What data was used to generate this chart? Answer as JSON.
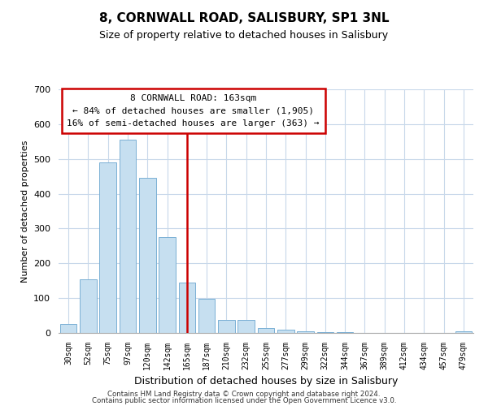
{
  "title": "8, CORNWALL ROAD, SALISBURY, SP1 3NL",
  "subtitle": "Size of property relative to detached houses in Salisbury",
  "xlabel": "Distribution of detached houses by size in Salisbury",
  "ylabel": "Number of detached properties",
  "bar_labels": [
    "30sqm",
    "52sqm",
    "75sqm",
    "97sqm",
    "120sqm",
    "142sqm",
    "165sqm",
    "187sqm",
    "210sqm",
    "232sqm",
    "255sqm",
    "277sqm",
    "299sqm",
    "322sqm",
    "344sqm",
    "367sqm",
    "389sqm",
    "412sqm",
    "434sqm",
    "457sqm",
    "479sqm"
  ],
  "bar_values": [
    25,
    155,
    490,
    555,
    445,
    275,
    145,
    97,
    37,
    37,
    15,
    10,
    5,
    2,
    2,
    0,
    0,
    0,
    0,
    0,
    5
  ],
  "bar_color": "#c6dff0",
  "bar_edge_color": "#7ab0d4",
  "vline_index": 6,
  "vline_color": "#cc0000",
  "annotation_title": "8 CORNWALL ROAD: 163sqm",
  "annotation_line1": "← 84% of detached houses are smaller (1,905)",
  "annotation_line2": "16% of semi-detached houses are larger (363) →",
  "annotation_box_color": "#ffffff",
  "annotation_box_edge": "#cc0000",
  "ylim": [
    0,
    700
  ],
  "yticks": [
    0,
    100,
    200,
    300,
    400,
    500,
    600,
    700
  ],
  "footer_line1": "Contains HM Land Registry data © Crown copyright and database right 2024.",
  "footer_line2": "Contains public sector information licensed under the Open Government Licence v3.0.",
  "background_color": "#ffffff",
  "grid_color": "#c8d8ea"
}
